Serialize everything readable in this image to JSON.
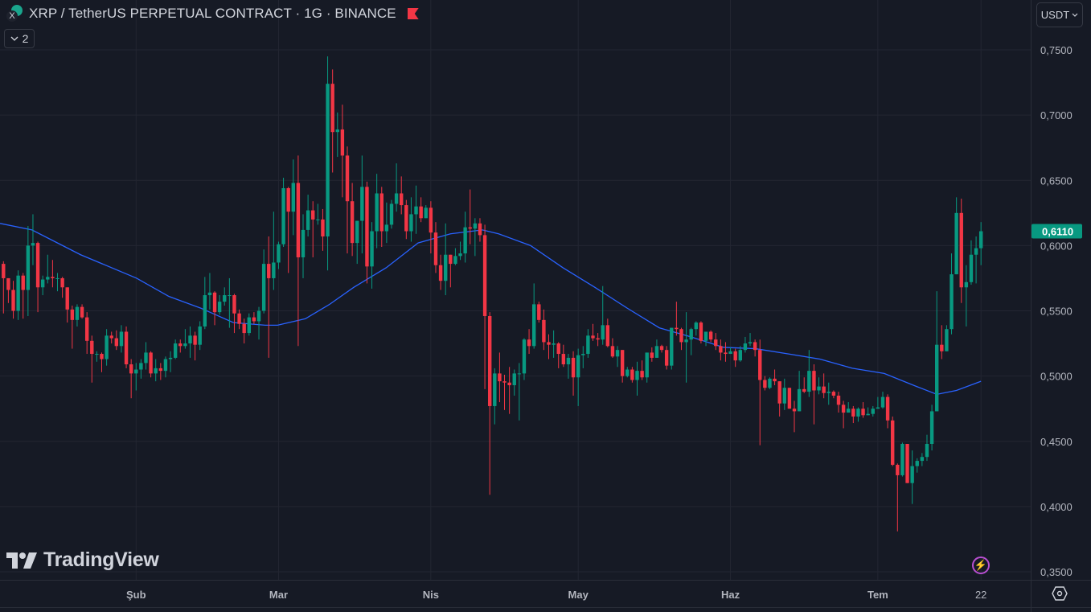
{
  "header": {
    "title": "XRP / TetherUS PERPETUAL CONTRACT · 1G · BINANCE",
    "symbol_icon_glyph": "X",
    "collapse_count": "2"
  },
  "currency_button": "USDT",
  "branding": "TradingView",
  "colors": {
    "background": "#161a25",
    "grid": "#232632",
    "up": "#089981",
    "down": "#f23645",
    "ma": "#2962ff",
    "text": "#d1d4dc",
    "axis_text": "#b2b5be"
  },
  "icons": [
    "symbol-logo-icon",
    "chevron-down-icon",
    "flag-icon",
    "tradingview-logo-icon",
    "lightning-icon",
    "settings-icon"
  ],
  "chart_data": {
    "type": "candlestick",
    "title": "XRP / TetherUS PERPETUAL CONTRACT · 1G · BINANCE",
    "ylim": [
      0.35,
      0.75
    ],
    "y_ticks": [
      "0,7500",
      "0,7000",
      "0,6500",
      "0,6000",
      "0,5500",
      "0,5000",
      "0,4500",
      "0,4000",
      "0,3500"
    ],
    "y_tick_values": [
      0.75,
      0.7,
      0.65,
      0.6,
      0.55,
      0.5,
      0.45,
      0.4,
      0.35
    ],
    "x_ticks": [
      {
        "label": "Şub",
        "index": 27
      },
      {
        "label": "Mar",
        "index": 56
      },
      {
        "label": "Nis",
        "index": 87
      },
      {
        "label": "May",
        "index": 117
      },
      {
        "label": "Haz",
        "index": 148
      },
      {
        "label": "Tem",
        "index": 178
      },
      {
        "label": "22",
        "index": 199
      }
    ],
    "last_price": "0,6110",
    "last_price_value": 0.611,
    "grid": true,
    "first_open": 0.586,
    "close": [
      0.575,
      0.566,
      0.55,
      0.577,
      0.566,
      0.6,
      0.602,
      0.568,
      0.574,
      0.576,
      0.575,
      0.575,
      0.568,
      0.551,
      0.543,
      0.553,
      0.545,
      0.527,
      0.517,
      0.517,
      0.513,
      0.531,
      0.529,
      0.523,
      0.534,
      0.509,
      0.502,
      0.505,
      0.51,
      0.518,
      0.502,
      0.506,
      0.504,
      0.513,
      0.514,
      0.525,
      0.523,
      0.525,
      0.531,
      0.524,
      0.538,
      0.562,
      0.564,
      0.549,
      0.557,
      0.562,
      0.562,
      0.548,
      0.54,
      0.533,
      0.545,
      0.542,
      0.55,
      0.586,
      0.575,
      0.587,
      0.601,
      0.644,
      0.626,
      0.648,
      0.591,
      0.612,
      0.627,
      0.62,
      0.62,
      0.607,
      0.724,
      0.687,
      0.689,
      0.669,
      0.634,
      0.602,
      0.619,
      0.645,
      0.584,
      0.611,
      0.64,
      0.611,
      0.616,
      0.632,
      0.64,
      0.631,
      0.611,
      0.624,
      0.63,
      0.621,
      0.629,
      0.61,
      0.585,
      0.573,
      0.593,
      0.586,
      0.592,
      0.594,
      0.614,
      0.613,
      0.617,
      0.608,
      0.546,
      0.477,
      0.502,
      0.496,
      0.495,
      0.493,
      0.502,
      0.502,
      0.528,
      0.523,
      0.555,
      0.543,
      0.526,
      0.524,
      0.525,
      0.517,
      0.509,
      0.514,
      0.499,
      0.516,
      0.517,
      0.531,
      0.529,
      0.528,
      0.539,
      0.523,
      0.515,
      0.52,
      0.5,
      0.505,
      0.497,
      0.504,
      0.499,
      0.518,
      0.514,
      0.523,
      0.52,
      0.508,
      0.537,
      0.536,
      0.526,
      0.528,
      0.536,
      0.541,
      0.527,
      0.534,
      0.528,
      0.523,
      0.518,
      0.517,
      0.519,
      0.512,
      0.52,
      0.525,
      0.526,
      0.52,
      0.497,
      0.491,
      0.498,
      0.496,
      0.479,
      0.491,
      0.475,
      0.473,
      0.49,
      0.488,
      0.504,
      0.489,
      0.492,
      0.487,
      0.488,
      0.485,
      0.478,
      0.472,
      0.475,
      0.469,
      0.475,
      0.47,
      0.471,
      0.475,
      0.476,
      0.484,
      0.466,
      0.432,
      0.424,
      0.448,
      0.418,
      0.431,
      0.435,
      0.438,
      0.448,
      0.473,
      0.524,
      0.519,
      0.536,
      0.578,
      0.625,
      0.568,
      0.572,
      0.593,
      0.598,
      0.611
    ],
    "high": [
      0.588,
      0.575,
      0.573,
      0.581,
      0.579,
      0.615,
      0.624,
      0.603,
      0.577,
      0.593,
      0.589,
      0.579,
      0.576,
      0.568,
      0.554,
      0.555,
      0.555,
      0.549,
      0.531,
      0.519,
      0.518,
      0.536,
      0.534,
      0.535,
      0.539,
      0.538,
      0.513,
      0.51,
      0.513,
      0.526,
      0.519,
      0.513,
      0.51,
      0.515,
      0.519,
      0.528,
      0.528,
      0.536,
      0.538,
      0.534,
      0.542,
      0.576,
      0.579,
      0.565,
      0.562,
      0.568,
      0.575,
      0.563,
      0.551,
      0.544,
      0.548,
      0.549,
      0.553,
      0.597,
      0.607,
      0.626,
      0.603,
      0.652,
      0.645,
      0.666,
      0.669,
      0.624,
      0.639,
      0.634,
      0.632,
      0.628,
      0.745,
      0.735,
      0.702,
      0.708,
      0.676,
      0.648,
      0.619,
      0.669,
      0.649,
      0.618,
      0.655,
      0.645,
      0.633,
      0.635,
      0.663,
      0.653,
      0.635,
      0.637,
      0.646,
      0.637,
      0.631,
      0.634,
      0.618,
      0.593,
      0.617,
      0.593,
      0.598,
      0.603,
      0.626,
      0.643,
      0.621,
      0.621,
      0.616,
      0.549,
      0.506,
      0.518,
      0.501,
      0.507,
      0.505,
      0.51,
      0.529,
      0.536,
      0.571,
      0.557,
      0.551,
      0.532,
      0.535,
      0.526,
      0.524,
      0.517,
      0.519,
      0.521,
      0.523,
      0.536,
      0.54,
      0.533,
      0.569,
      0.544,
      0.529,
      0.523,
      0.52,
      0.507,
      0.507,
      0.511,
      0.512,
      0.518,
      0.522,
      0.528,
      0.524,
      0.523,
      0.537,
      0.557,
      0.537,
      0.549,
      0.537,
      0.542,
      0.542,
      0.534,
      0.535,
      0.533,
      0.528,
      0.526,
      0.522,
      0.521,
      0.523,
      0.53,
      0.533,
      0.528,
      0.528,
      0.5,
      0.499,
      0.505,
      0.496,
      0.498,
      0.491,
      0.481,
      0.504,
      0.499,
      0.52,
      0.509,
      0.499,
      0.502,
      0.495,
      0.489,
      0.488,
      0.481,
      0.48,
      0.477,
      0.476,
      0.48,
      0.476,
      0.477,
      0.484,
      0.488,
      0.486,
      0.469,
      0.433,
      0.449,
      0.448,
      0.443,
      0.437,
      0.441,
      0.455,
      0.478,
      0.565,
      0.539,
      0.539,
      0.594,
      0.637,
      0.636,
      0.585,
      0.604,
      0.607,
      0.618
    ],
    "low": [
      0.548,
      0.556,
      0.544,
      0.543,
      0.544,
      0.546,
      0.585,
      0.549,
      0.562,
      0.571,
      0.568,
      0.565,
      0.56,
      0.541,
      0.521,
      0.538,
      0.544,
      0.517,
      0.495,
      0.511,
      0.503,
      0.508,
      0.525,
      0.52,
      0.518,
      0.506,
      0.483,
      0.489,
      0.498,
      0.505,
      0.499,
      0.496,
      0.497,
      0.499,
      0.503,
      0.513,
      0.518,
      0.521,
      0.514,
      0.512,
      0.52,
      0.536,
      0.551,
      0.539,
      0.547,
      0.554,
      0.537,
      0.533,
      0.536,
      0.525,
      0.531,
      0.54,
      0.528,
      0.548,
      0.514,
      0.566,
      0.582,
      0.599,
      0.579,
      0.608,
      0.523,
      0.575,
      0.607,
      0.591,
      0.616,
      0.596,
      0.581,
      0.656,
      0.668,
      0.637,
      0.594,
      0.592,
      0.586,
      0.594,
      0.571,
      0.567,
      0.598,
      0.599,
      0.602,
      0.613,
      0.626,
      0.624,
      0.605,
      0.603,
      0.609,
      0.618,
      0.621,
      0.594,
      0.579,
      0.566,
      0.562,
      0.568,
      0.585,
      0.589,
      0.587,
      0.601,
      0.592,
      0.603,
      0.49,
      0.409,
      0.463,
      0.48,
      0.474,
      0.471,
      0.485,
      0.466,
      0.497,
      0.517,
      0.521,
      0.541,
      0.52,
      0.513,
      0.514,
      0.506,
      0.507,
      0.498,
      0.485,
      0.477,
      0.506,
      0.514,
      0.527,
      0.523,
      0.524,
      0.522,
      0.514,
      0.507,
      0.495,
      0.499,
      0.495,
      0.485,
      0.497,
      0.495,
      0.511,
      0.514,
      0.518,
      0.505,
      0.505,
      0.531,
      0.52,
      0.495,
      0.516,
      0.531,
      0.525,
      0.523,
      0.526,
      0.52,
      0.512,
      0.511,
      0.517,
      0.507,
      0.511,
      0.518,
      0.523,
      0.515,
      0.447,
      0.489,
      0.49,
      0.493,
      0.469,
      0.474,
      0.475,
      0.457,
      0.473,
      0.487,
      0.484,
      0.463,
      0.486,
      0.483,
      0.478,
      0.483,
      0.472,
      0.46,
      0.472,
      0.464,
      0.465,
      0.468,
      0.47,
      0.469,
      0.475,
      0.475,
      0.46,
      0.431,
      0.381,
      0.423,
      0.418,
      0.402,
      0.426,
      0.431,
      0.435,
      0.443,
      0.473,
      0.513,
      0.519,
      0.532,
      0.578,
      0.556,
      0.538,
      0.57,
      0.571,
      0.585
    ],
    "moving_average": [
      [
        -0.7,
        0.617
      ],
      [
        5.8,
        0.612
      ],
      [
        15.7,
        0.593
      ],
      [
        27.1,
        0.575
      ],
      [
        33.7,
        0.561
      ],
      [
        40.2,
        0.552
      ],
      [
        46.8,
        0.541
      ],
      [
        53.3,
        0.539
      ],
      [
        55.8,
        0.539
      ],
      [
        61.5,
        0.544
      ],
      [
        66.4,
        0.555
      ],
      [
        71.3,
        0.568
      ],
      [
        77.9,
        0.583
      ],
      [
        84.4,
        0.602
      ],
      [
        91,
        0.609
      ],
      [
        97.5,
        0.612
      ],
      [
        100.8,
        0.609
      ],
      [
        107.3,
        0.6
      ],
      [
        113.9,
        0.583
      ],
      [
        120.4,
        0.568
      ],
      [
        127,
        0.552
      ],
      [
        133.5,
        0.537
      ],
      [
        140,
        0.53
      ],
      [
        146.6,
        0.522
      ],
      [
        153.1,
        0.521
      ],
      [
        159.7,
        0.517
      ],
      [
        166.2,
        0.513
      ],
      [
        172.8,
        0.506
      ],
      [
        179.3,
        0.502
      ],
      [
        185.9,
        0.492
      ],
      [
        190,
        0.486
      ],
      [
        194,
        0.489
      ],
      [
        199,
        0.496
      ]
    ]
  }
}
